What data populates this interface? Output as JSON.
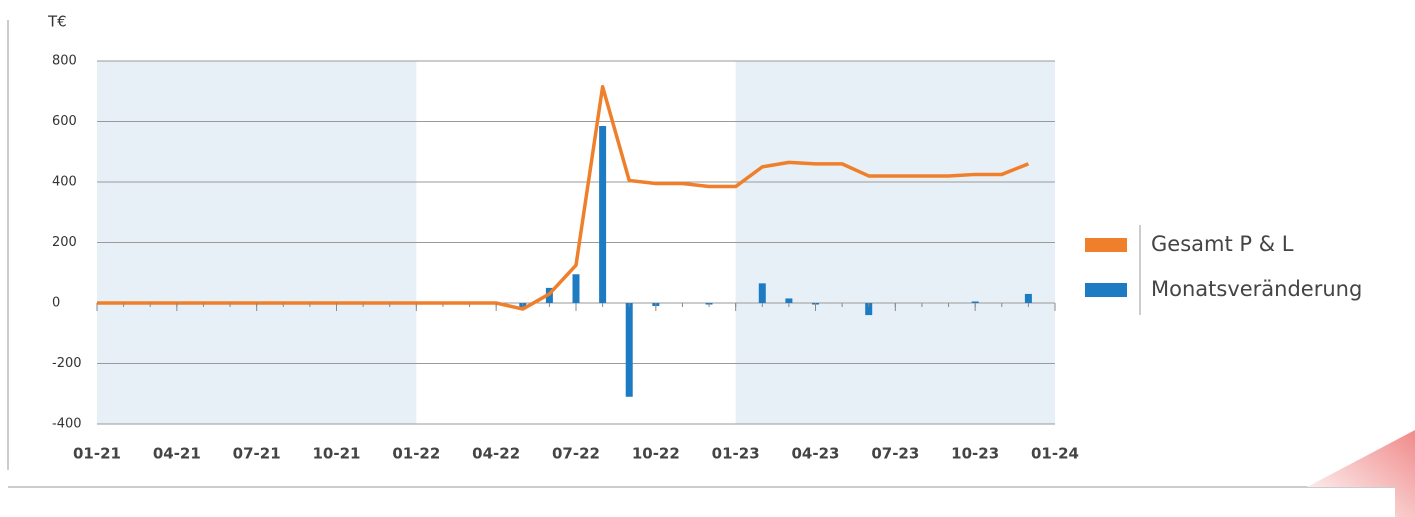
{
  "chart_data": {
    "type": "combo",
    "y_label": "T€",
    "x": [
      0,
      1,
      2,
      3,
      4,
      5,
      6,
      7,
      8,
      9,
      10,
      11,
      12,
      13,
      14,
      15,
      16,
      17,
      18,
      19,
      20,
      21,
      22,
      23,
      24,
      25,
      26,
      27,
      28,
      29,
      30,
      31,
      32,
      33,
      34,
      35
    ],
    "xlim": [
      0,
      36
    ],
    "xticks": [
      {
        "value": 0,
        "label": "01-21"
      },
      {
        "value": 3,
        "label": "04-21"
      },
      {
        "value": 6,
        "label": "07-21"
      },
      {
        "value": 9,
        "label": "10-21"
      },
      {
        "value": 12,
        "label": "01-22"
      },
      {
        "value": 15,
        "label": "04-22"
      },
      {
        "value": 18,
        "label": "07-22"
      },
      {
        "value": 21,
        "label": "10-22"
      },
      {
        "value": 24,
        "label": "01-23"
      },
      {
        "value": 27,
        "label": "04-23"
      },
      {
        "value": 30,
        "label": "07-23"
      },
      {
        "value": 33,
        "label": "10-23"
      },
      {
        "value": 36,
        "label": "01-24"
      }
    ],
    "ylim": [
      -400,
      800
    ],
    "yticks": [
      -400,
      -200,
      0,
      200,
      400,
      600,
      800
    ],
    "grid": true,
    "bands": [
      [
        0,
        12
      ],
      [
        24,
        36
      ]
    ],
    "band_color": "#e8f0f7",
    "legend": "right",
    "series": [
      {
        "name": "Gesamt P & L",
        "type": "line",
        "color": "#f07f2b",
        "values": [
          0,
          0,
          0,
          0,
          0,
          0,
          0,
          0,
          0,
          0,
          0,
          0,
          0,
          0,
          0,
          0,
          -20,
          30,
          125,
          715,
          405,
          395,
          395,
          385,
          385,
          450,
          465,
          460,
          460,
          420,
          420,
          420,
          420,
          425,
          425,
          460
        ]
      },
      {
        "name": "Monatsveränderung",
        "type": "bar",
        "color": "#1d7bc3",
        "values": [
          0,
          0,
          0,
          0,
          0,
          0,
          0,
          0,
          0,
          0,
          0,
          0,
          0,
          0,
          0,
          0,
          -15,
          50,
          95,
          585,
          -310,
          -10,
          0,
          -5,
          0,
          65,
          15,
          -5,
          0,
          -40,
          0,
          0,
          0,
          5,
          0,
          30
        ]
      }
    ]
  }
}
